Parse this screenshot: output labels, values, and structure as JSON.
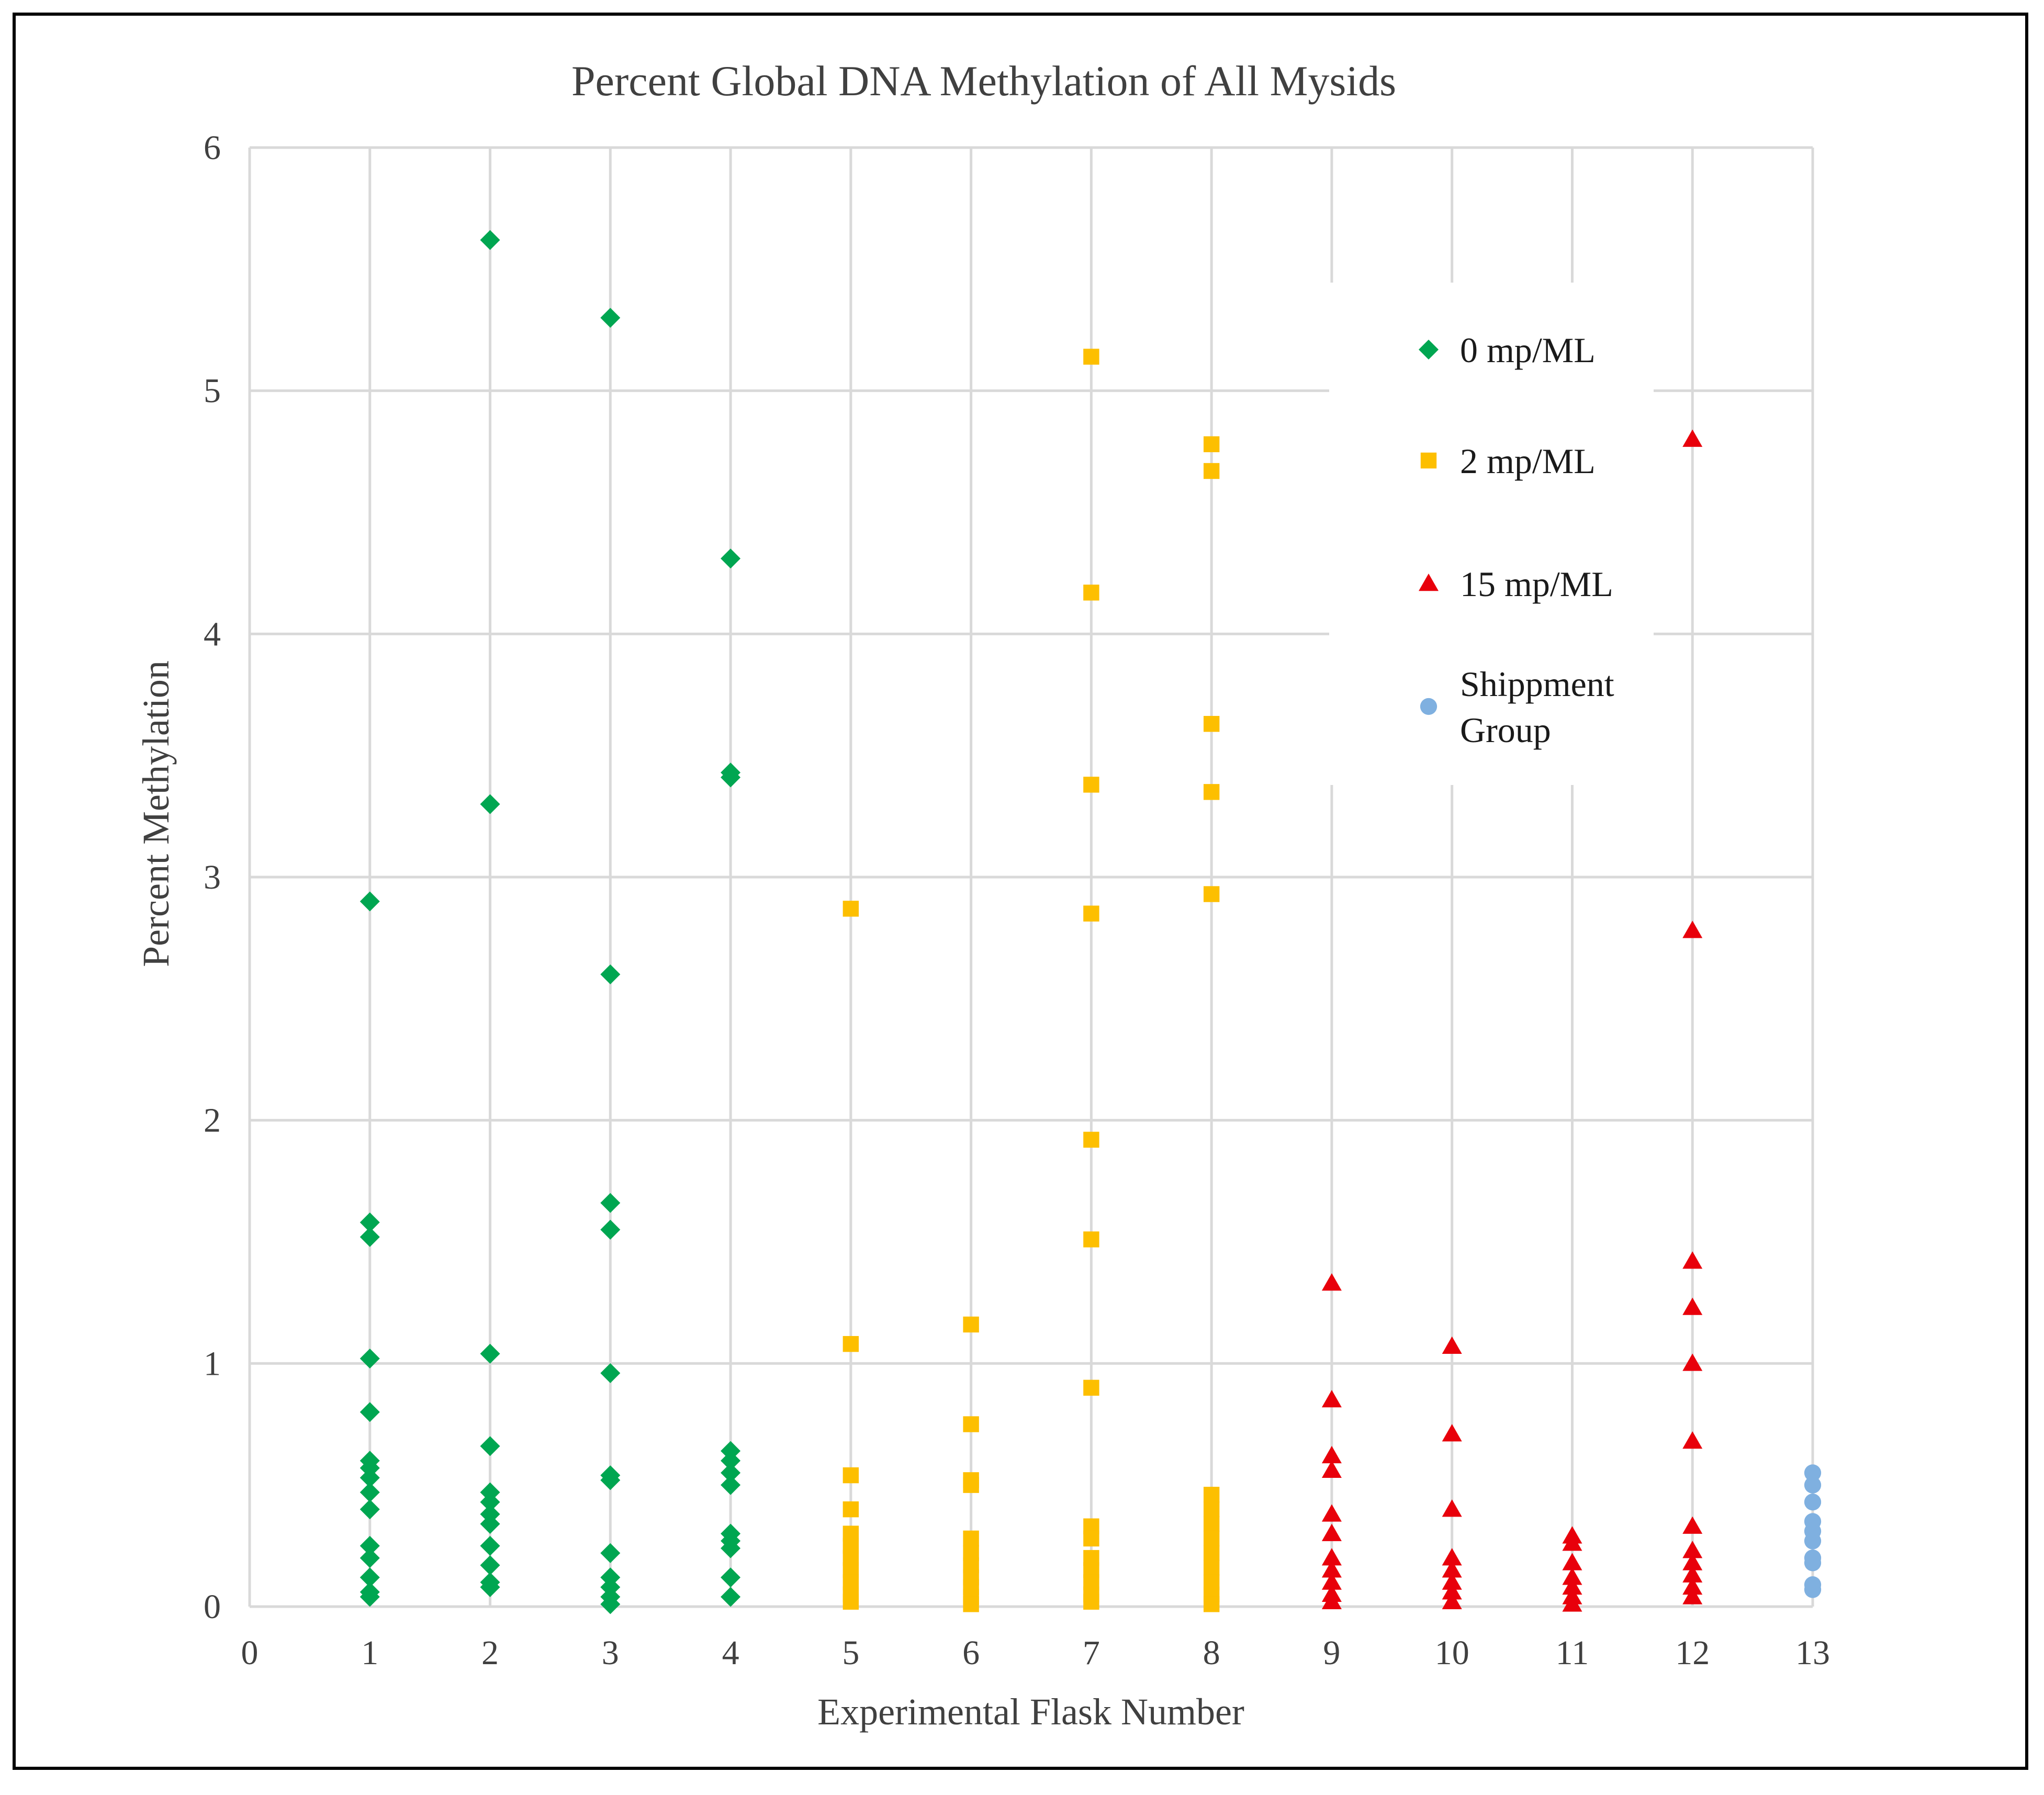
{
  "chart_data": {
    "type": "scatter",
    "title": "Percent Global DNA Methylation of All Mysids",
    "xlabel": "Experimental Flask Number",
    "ylabel": "Percent Methylation",
    "xlim": [
      0,
      13
    ],
    "ylim": [
      0,
      6
    ],
    "x_ticks": [
      0,
      1,
      2,
      3,
      4,
      5,
      6,
      7,
      8,
      9,
      10,
      11,
      12,
      13
    ],
    "y_ticks": [
      0,
      1,
      2,
      3,
      4,
      5,
      6
    ],
    "grid": true,
    "legend_position": "top-right",
    "series": [
      {
        "name": "0 mp/ML",
        "marker": "diamond",
        "color": "#00a651",
        "points": [
          [
            1,
            2.9
          ],
          [
            1,
            1.58
          ],
          [
            1,
            1.52
          ],
          [
            1,
            1.02
          ],
          [
            1,
            0.8
          ],
          [
            1,
            0.6
          ],
          [
            1,
            0.57
          ],
          [
            1,
            0.53
          ],
          [
            1,
            0.47
          ],
          [
            1,
            0.4
          ],
          [
            1,
            0.25
          ],
          [
            1,
            0.2
          ],
          [
            1,
            0.12
          ],
          [
            1,
            0.06
          ],
          [
            1,
            0.04
          ],
          [
            2,
            5.62
          ],
          [
            2,
            3.3
          ],
          [
            2,
            1.04
          ],
          [
            2,
            0.66
          ],
          [
            2,
            0.47
          ],
          [
            2,
            0.43
          ],
          [
            2,
            0.38
          ],
          [
            2,
            0.34
          ],
          [
            2,
            0.25
          ],
          [
            2,
            0.17
          ],
          [
            2,
            0.1
          ],
          [
            2,
            0.08
          ],
          [
            3,
            5.3
          ],
          [
            3,
            2.6
          ],
          [
            3,
            1.66
          ],
          [
            3,
            1.55
          ],
          [
            3,
            0.96
          ],
          [
            3,
            0.54
          ],
          [
            3,
            0.52
          ],
          [
            3,
            0.22
          ],
          [
            3,
            0.12
          ],
          [
            3,
            0.08
          ],
          [
            3,
            0.04
          ],
          [
            3,
            0.01
          ],
          [
            4,
            4.31
          ],
          [
            4,
            3.43
          ],
          [
            4,
            3.41
          ],
          [
            4,
            0.64
          ],
          [
            4,
            0.6
          ],
          [
            4,
            0.55
          ],
          [
            4,
            0.5
          ],
          [
            4,
            0.3
          ],
          [
            4,
            0.27
          ],
          [
            4,
            0.24
          ],
          [
            4,
            0.12
          ],
          [
            4,
            0.04
          ]
        ]
      },
      {
        "name": "2 mp/ML",
        "marker": "square",
        "color": "#fdbf00",
        "points": [
          [
            5,
            2.87
          ],
          [
            5,
            1.08
          ],
          [
            5,
            0.54
          ],
          [
            5,
            0.4
          ],
          [
            5,
            0.3
          ],
          [
            5,
            0.25
          ],
          [
            5,
            0.2
          ],
          [
            5,
            0.15
          ],
          [
            5,
            0.1
          ],
          [
            5,
            0.05
          ],
          [
            5,
            0.02
          ],
          [
            6,
            1.16
          ],
          [
            6,
            0.75
          ],
          [
            6,
            0.52
          ],
          [
            6,
            0.5
          ],
          [
            6,
            0.28
          ],
          [
            6,
            0.22
          ],
          [
            6,
            0.17
          ],
          [
            6,
            0.12
          ],
          [
            6,
            0.08
          ],
          [
            6,
            0.04
          ],
          [
            6,
            0.01
          ],
          [
            7,
            5.14
          ],
          [
            7,
            4.17
          ],
          [
            7,
            3.38
          ],
          [
            7,
            2.85
          ],
          [
            7,
            1.92
          ],
          [
            7,
            1.51
          ],
          [
            7,
            0.9
          ],
          [
            7,
            0.33
          ],
          [
            7,
            0.28
          ],
          [
            7,
            0.2
          ],
          [
            7,
            0.15
          ],
          [
            7,
            0.1
          ],
          [
            7,
            0.05
          ],
          [
            7,
            0.02
          ],
          [
            8,
            4.78
          ],
          [
            8,
            4.67
          ],
          [
            8,
            3.63
          ],
          [
            8,
            3.35
          ],
          [
            8,
            2.93
          ],
          [
            8,
            0.46
          ],
          [
            8,
            0.4
          ],
          [
            8,
            0.34
          ],
          [
            8,
            0.28
          ],
          [
            8,
            0.22
          ],
          [
            8,
            0.16
          ],
          [
            8,
            0.1
          ],
          [
            8,
            0.05
          ],
          [
            8,
            0.01
          ]
        ]
      },
      {
        "name": "15 mp/ML",
        "marker": "triangle",
        "color": "#e8000b",
        "points": [
          [
            9,
            1.33
          ],
          [
            9,
            0.85
          ],
          [
            9,
            0.62
          ],
          [
            9,
            0.56
          ],
          [
            9,
            0.38
          ],
          [
            9,
            0.3
          ],
          [
            9,
            0.2
          ],
          [
            9,
            0.15
          ],
          [
            9,
            0.1
          ],
          [
            9,
            0.05
          ],
          [
            9,
            0.02
          ],
          [
            10,
            1.07
          ],
          [
            10,
            0.71
          ],
          [
            10,
            0.4
          ],
          [
            10,
            0.2
          ],
          [
            10,
            0.15
          ],
          [
            10,
            0.1
          ],
          [
            10,
            0.06
          ],
          [
            10,
            0.02
          ],
          [
            11,
            0.29
          ],
          [
            11,
            0.26
          ],
          [
            11,
            0.18
          ],
          [
            11,
            0.12
          ],
          [
            11,
            0.08
          ],
          [
            11,
            0.04
          ],
          [
            11,
            0.01
          ],
          [
            12,
            4.8
          ],
          [
            12,
            2.78
          ],
          [
            12,
            1.42
          ],
          [
            12,
            1.23
          ],
          [
            12,
            1.0
          ],
          [
            12,
            0.68
          ],
          [
            12,
            0.33
          ],
          [
            12,
            0.23
          ],
          [
            12,
            0.18
          ],
          [
            12,
            0.13
          ],
          [
            12,
            0.08
          ],
          [
            12,
            0.04
          ]
        ]
      },
      {
        "name": "Shippment Group",
        "marker": "circle",
        "color": "#7fb0e0",
        "points": [
          [
            13,
            0.55
          ],
          [
            13,
            0.5
          ],
          [
            13,
            0.43
          ],
          [
            13,
            0.35
          ],
          [
            13,
            0.31
          ],
          [
            13,
            0.27
          ],
          [
            13,
            0.2
          ],
          [
            13,
            0.18
          ],
          [
            13,
            0.09
          ],
          [
            13,
            0.07
          ]
        ]
      }
    ]
  }
}
